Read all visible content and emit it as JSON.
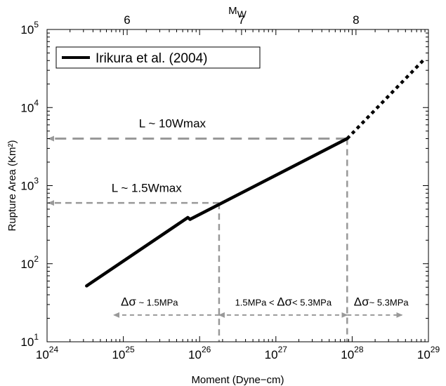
{
  "chart_data": {
    "type": "line",
    "xlabel": "Moment (Dyne−cm)",
    "ylabel": "Rupture Area (Km²)",
    "top_axis_label": "M",
    "top_axis_label_sub": "W",
    "x_scale": "log",
    "y_scale": "log",
    "xlim": [
      1e+24,
      1e+29
    ],
    "ylim": [
      10,
      100000
    ],
    "grid": false,
    "legend_position": "top-left",
    "x_ticks": [
      {
        "value": 1e+24,
        "base": "10",
        "exp": "24"
      },
      {
        "value": 1e+25,
        "base": "10",
        "exp": "25"
      },
      {
        "value": 1e+26,
        "base": "10",
        "exp": "26"
      },
      {
        "value": 1e+27,
        "base": "10",
        "exp": "27"
      },
      {
        "value": 1e+28,
        "base": "10",
        "exp": "28"
      },
      {
        "value": 1e+29,
        "base": "10",
        "exp": "29"
      }
    ],
    "y_ticks": [
      {
        "value": 10,
        "base": "10",
        "exp": "1"
      },
      {
        "value": 100,
        "base": "10",
        "exp": "2"
      },
      {
        "value": 1000,
        "base": "10",
        "exp": "3"
      },
      {
        "value": 10000,
        "base": "10",
        "exp": "4"
      },
      {
        "value": 100000,
        "base": "10",
        "exp": "5"
      }
    ],
    "top_ticks": [
      {
        "mw": 6,
        "label": "6"
      },
      {
        "mw": 7,
        "label": "7"
      },
      {
        "mw": 8,
        "label": "8"
      }
    ],
    "series": [
      {
        "name": "Irikura et al. (2004)",
        "color": "#000000",
        "segments": [
          {
            "style": "solid",
            "x": [
              3.3e+24,
              7e+25
            ],
            "y": [
              52,
              390
            ]
          },
          {
            "style": "solid",
            "x": [
              7e+25,
              7.5e+25
            ],
            "y": [
              390,
              370
            ]
          },
          {
            "style": "solid",
            "x": [
              7.5e+25,
              8.6e+27
            ],
            "y": [
              370,
              4000
            ]
          },
          {
            "style": "dotted",
            "x": [
              8.6e+27,
              8.5e+28
            ],
            "y": [
              4000,
              40000
            ]
          }
        ]
      }
    ],
    "guides": {
      "color": "#999999",
      "h1": {
        "y": 4000,
        "x_from": 8.6e+27,
        "x_to": 1e+24,
        "label": "L ~ 10Wmax",
        "label_x": 1.6e+25,
        "label_y": 5600
      },
      "h2": {
        "y": 600,
        "x_from": 1.8e+26,
        "x_to": 1e+24,
        "label": "L ~ 1.5Wmax",
        "label_x": 7e+24,
        "label_y": 830
      },
      "v1": {
        "x": 1.8e+26,
        "y_from": 600,
        "y_to": 10
      },
      "v2": {
        "x": 8.6e+27,
        "y_from": 4000,
        "y_to": 10
      },
      "ranges_y": 22,
      "ranges": [
        {
          "from": 1.8e+26,
          "to": 7.5e+24,
          "dir": "left"
        },
        {
          "from": 1.8e+26,
          "to": 8.6e+27,
          "dir": "both"
        },
        {
          "from": 8.6e+27,
          "to": 4.5e+28,
          "dir": "right"
        }
      ]
    },
    "annotations": [
      {
        "sym": "Δσ",
        "text": " ~ 1.5MPa",
        "x": 2.2e+25,
        "y": 29
      },
      {
        "pre": "1.5MPa < ",
        "sym": "Δσ",
        "text": "< 5.3MPa",
        "x": 1.25e+27,
        "y": 29
      },
      {
        "sym": "Δσ",
        "text": "~ 5.3MPa",
        "x": 2.4e+28,
        "y": 29
      }
    ]
  }
}
